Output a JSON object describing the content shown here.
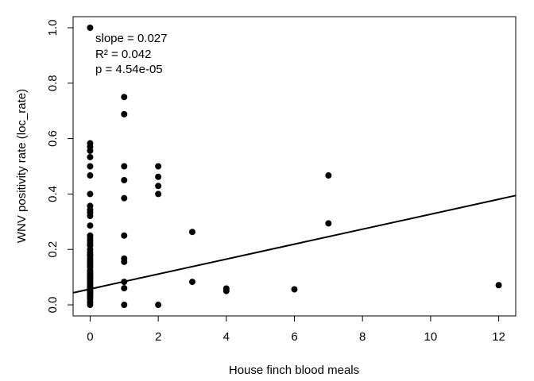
{
  "chart_data": {
    "type": "scatter",
    "title": "",
    "xlabel": "House finch blood meals",
    "ylabel": "WNV positivity rate (loc_rate)",
    "xlim": [
      -0.5,
      12.5
    ],
    "ylim": [
      -0.04,
      1.04
    ],
    "xticks": [
      0,
      2,
      4,
      6,
      8,
      10,
      12
    ],
    "yticks": [
      0.0,
      0.2,
      0.4,
      0.6,
      0.8,
      1.0
    ],
    "xtick_labels": [
      "0",
      "2",
      "4",
      "6",
      "8",
      "10",
      "12"
    ],
    "ytick_labels": [
      "0.0",
      "0.2",
      "0.4",
      "0.6",
      "0.8",
      "1.0"
    ],
    "grid": false,
    "annotations": [
      "slope = 0.027",
      "R² = 0.042",
      "p = 4.54e-05"
    ],
    "regression_line": {
      "intercept": 0.057,
      "slope": 0.027
    },
    "points": [
      [
        0,
        1.0
      ],
      [
        0,
        0.583
      ],
      [
        0,
        0.571
      ],
      [
        0,
        0.556
      ],
      [
        0,
        0.533
      ],
      [
        0,
        0.5
      ],
      [
        0,
        0.467
      ],
      [
        0,
        0.4
      ],
      [
        0,
        0.357
      ],
      [
        0,
        0.343
      ],
      [
        0,
        0.333
      ],
      [
        0,
        0.321
      ],
      [
        0,
        0.286
      ],
      [
        0,
        0.25
      ],
      [
        0,
        0.24
      ],
      [
        0,
        0.231
      ],
      [
        0,
        0.222
      ],
      [
        0,
        0.214
      ],
      [
        0,
        0.2
      ],
      [
        0,
        0.19
      ],
      [
        0,
        0.182
      ],
      [
        0,
        0.176
      ],
      [
        0,
        0.167
      ],
      [
        0,
        0.158
      ],
      [
        0,
        0.15
      ],
      [
        0,
        0.143
      ],
      [
        0,
        0.136
      ],
      [
        0,
        0.125
      ],
      [
        0,
        0.118
      ],
      [
        0,
        0.111
      ],
      [
        0,
        0.105
      ],
      [
        0,
        0.1
      ],
      [
        0,
        0.095
      ],
      [
        0,
        0.091
      ],
      [
        0,
        0.083
      ],
      [
        0,
        0.077
      ],
      [
        0,
        0.071
      ],
      [
        0,
        0.067
      ],
      [
        0,
        0.062
      ],
      [
        0,
        0.056
      ],
      [
        0,
        0.05
      ],
      [
        0,
        0.045
      ],
      [
        0,
        0.04
      ],
      [
        0,
        0.033
      ],
      [
        0,
        0.028
      ],
      [
        0,
        0.02
      ],
      [
        0,
        0.01
      ],
      [
        0,
        0.0
      ],
      [
        1,
        0.75
      ],
      [
        1,
        0.688
      ],
      [
        1,
        0.5
      ],
      [
        1,
        0.45
      ],
      [
        1,
        0.385
      ],
      [
        1,
        0.25
      ],
      [
        1,
        0.167
      ],
      [
        1,
        0.155
      ],
      [
        1,
        0.083
      ],
      [
        1,
        0.06
      ],
      [
        1,
        0.0
      ],
      [
        2,
        0.5
      ],
      [
        2,
        0.462
      ],
      [
        2,
        0.429
      ],
      [
        2,
        0.4
      ],
      [
        2,
        0.0
      ],
      [
        3,
        0.263
      ],
      [
        3,
        0.083
      ],
      [
        4,
        0.059
      ],
      [
        4,
        0.05
      ],
      [
        6,
        0.056
      ],
      [
        7,
        0.467
      ],
      [
        7,
        0.294
      ],
      [
        12,
        0.071
      ]
    ]
  }
}
